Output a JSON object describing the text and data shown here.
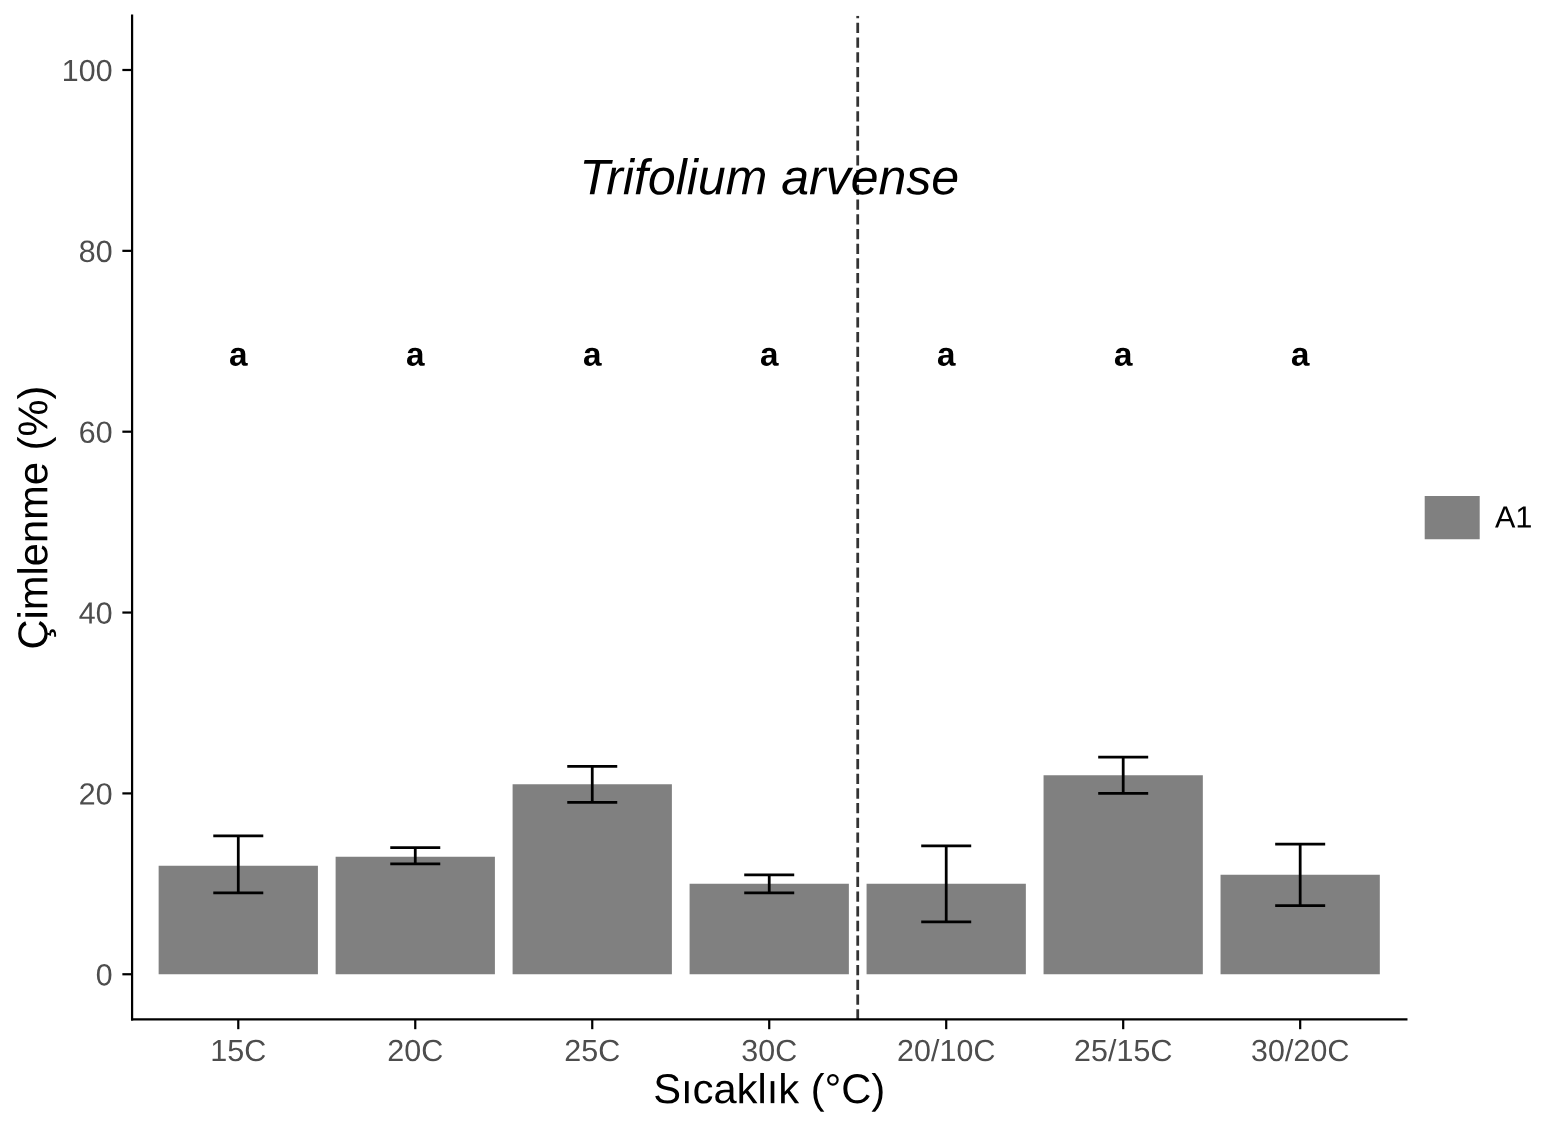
{
  "chart_data": {
    "type": "bar",
    "title": "Trifolium arvense",
    "xlabel": "Sıcaklık (°C)",
    "ylabel": "Çimlenme (%)",
    "categories": [
      "15C",
      "20C",
      "25C",
      "30C",
      "20/10C",
      "25/15C",
      "30/20C"
    ],
    "series": [
      {
        "name": "A1",
        "color": "#808080",
        "values": [
          12,
          13,
          21,
          10,
          10,
          22,
          11
        ],
        "errors": [
          [
            9,
            15.3
          ],
          [
            12.2,
            14
          ],
          [
            19,
            23
          ],
          [
            9,
            11
          ],
          [
            5.8,
            14.2
          ],
          [
            20,
            24
          ],
          [
            7.6,
            14.4
          ]
        ]
      }
    ],
    "annotations": [
      "a",
      "a",
      "a",
      "a",
      "a",
      "a",
      "a"
    ],
    "ylim": [
      -5,
      106
    ],
    "yticks": [
      0,
      20,
      40,
      60,
      80,
      100
    ],
    "grid": false,
    "legend": "right"
  }
}
